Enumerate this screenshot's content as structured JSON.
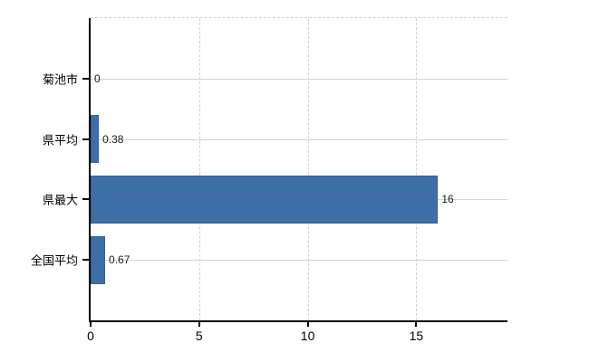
{
  "chart_data": {
    "type": "bar",
    "orientation": "horizontal",
    "title": "",
    "xlabel": "",
    "ylabel": "",
    "categories": [
      "菊池市",
      "県平均",
      "県最大",
      "全国平均"
    ],
    "values": [
      0,
      0.38,
      16,
      0.67
    ],
    "value_labels": [
      "0",
      "0.38",
      "16",
      "0.67"
    ],
    "xlim": [
      0,
      19.2
    ],
    "xticks": [
      0,
      5,
      10,
      15
    ],
    "xtick_labels": [
      "0",
      "5",
      "10",
      "15"
    ],
    "grid": true,
    "legend": false,
    "colors": {
      "bar": "#3d6ea6",
      "bar_border": "#35619a",
      "axis": "#000000",
      "vertical_grid": "#d6cdd4",
      "horizontal_grid": "#ccd7cc",
      "text": "#000000",
      "background": "#ffffff"
    }
  }
}
